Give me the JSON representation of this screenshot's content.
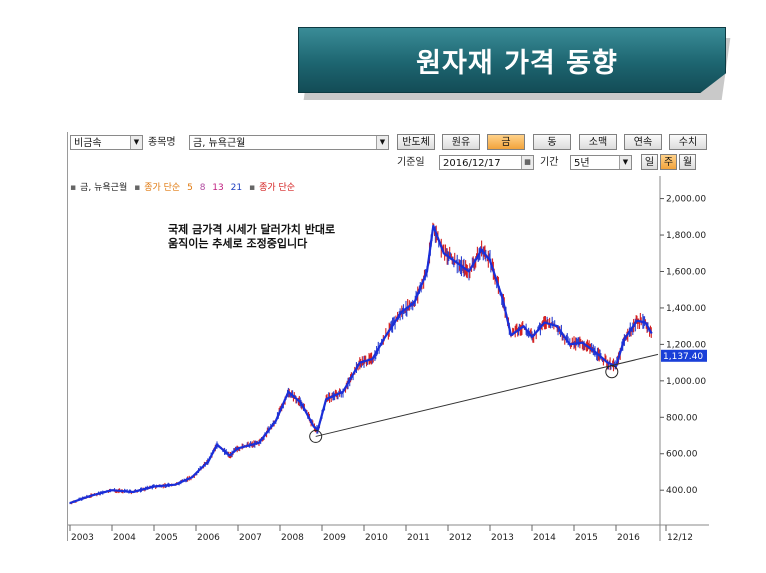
{
  "banner": {
    "title": "원자재 가격 동향"
  },
  "toolbar": {
    "category_select": "비금속",
    "item_label": "종목명",
    "item_select": "금, 뉴욕근월",
    "buttons": [
      "반도체",
      "원유",
      "금",
      "동",
      "소맥",
      "연속",
      "수치"
    ],
    "active_button": "금",
    "base_date_label": "기준일",
    "base_date": "2016/12/17",
    "period_label": "기간",
    "period_select": "5년",
    "period_buttons": [
      "일",
      "주",
      "월"
    ],
    "active_period": "주"
  },
  "legend": {
    "item": "금, 뉴욕근월",
    "ma_label": "종가 단순",
    "ma_values": [
      "5",
      "8",
      "13",
      "21"
    ],
    "price_label": "종가 단순"
  },
  "annotation": {
    "line1": "국제 금가격 시세가 달러가치 반대로",
    "line2": "움직이는 추세로 조정중입니다"
  },
  "colors": {
    "banner": "#1d6570",
    "price": "#d42020",
    "ma": "#1a2ed8",
    "active_btn": "#f2a33c",
    "current": "#1a3fd8"
  },
  "chart_data": {
    "type": "line",
    "x_labels": [
      "2003",
      "2004",
      "2005",
      "2006",
      "2007",
      "2008",
      "2009",
      "2010",
      "2011",
      "2012",
      "2013",
      "2014",
      "2015",
      "2016",
      "12/12"
    ],
    "y_ticks": [
      "2,000.00",
      "1,800.00",
      "1,600.00",
      "1,400.00",
      "1,200.00",
      "1,000.00",
      "800.00",
      "600.00",
      "400.00"
    ],
    "ylim": [
      220,
      2080
    ],
    "current_value": "1,137.40",
    "series": [
      {
        "points": [
          [
            2003.0,
            330
          ],
          [
            2003.5,
            370
          ],
          [
            2004.0,
            400
          ],
          [
            2004.5,
            390
          ],
          [
            2005.0,
            420
          ],
          [
            2005.5,
            430
          ],
          [
            2005.9,
            470
          ],
          [
            2006.3,
            560
          ],
          [
            2006.5,
            650
          ],
          [
            2006.8,
            590
          ],
          [
            2007.0,
            630
          ],
          [
            2007.5,
            660
          ],
          [
            2007.9,
            780
          ],
          [
            2008.2,
            940
          ],
          [
            2008.5,
            880
          ],
          [
            2008.8,
            750
          ],
          [
            2008.9,
            730
          ],
          [
            2009.1,
            900
          ],
          [
            2009.5,
            940
          ],
          [
            2009.9,
            1100
          ],
          [
            2010.2,
            1120
          ],
          [
            2010.5,
            1240
          ],
          [
            2010.9,
            1380
          ],
          [
            2011.2,
            1430
          ],
          [
            2011.5,
            1600
          ],
          [
            2011.65,
            1850
          ],
          [
            2011.9,
            1700
          ],
          [
            2012.2,
            1650
          ],
          [
            2012.5,
            1600
          ],
          [
            2012.8,
            1720
          ],
          [
            2013.0,
            1660
          ],
          [
            2013.3,
            1450
          ],
          [
            2013.5,
            1250
          ],
          [
            2013.8,
            1300
          ],
          [
            2014.0,
            1240
          ],
          [
            2014.3,
            1320
          ],
          [
            2014.6,
            1300
          ],
          [
            2014.9,
            1200
          ],
          [
            2015.2,
            1210
          ],
          [
            2015.5,
            1160
          ],
          [
            2015.8,
            1100
          ],
          [
            2016.0,
            1080
          ],
          [
            2016.2,
            1230
          ],
          [
            2016.5,
            1330
          ],
          [
            2016.7,
            1320
          ],
          [
            2016.85,
            1260
          ]
        ]
      }
    ],
    "trendline": [
      [
        2008.85,
        695
      ],
      [
        2017.0,
        1145
      ]
    ],
    "circles": [
      [
        2008.85,
        695
      ],
      [
        2015.9,
        1050
      ]
    ]
  }
}
